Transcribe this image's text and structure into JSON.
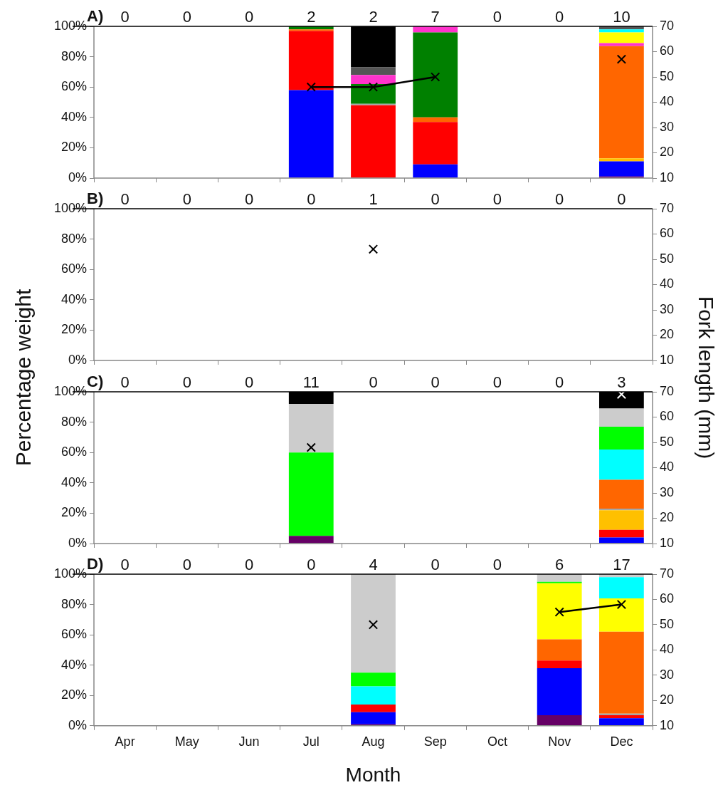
{
  "chart_data": [
    {
      "type": "bar",
      "title": "A)",
      "categories": [
        null,
        null,
        null,
        null,
        null,
        null,
        null,
        null,
        null
      ],
      "stacked": true,
      "grid": false,
      "ylim": [
        0,
        100
      ],
      "yticks": [
        {
          "value": 0,
          "label": "0%"
        },
        {
          "value": 20,
          "label": "20%"
        },
        {
          "value": 40,
          "label": "40%"
        },
        {
          "value": 60,
          "label": "60%"
        },
        {
          "value": 80,
          "label": "80%"
        },
        {
          "value": 100,
          "label": "100%"
        }
      ],
      "y2lim": [
        10,
        70
      ],
      "y2ticks": [
        10,
        20,
        30,
        40,
        50,
        60,
        70
      ],
      "series": [
        {
          "color": "#660066",
          "values": [
            null,
            null,
            null,
            null,
            null,
            null,
            null,
            null,
            1
          ]
        },
        {
          "color": "#0000ff",
          "values": [
            null,
            null,
            null,
            58,
            null,
            9,
            null,
            null,
            10
          ]
        },
        {
          "color": "#ff0000",
          "values": [
            null,
            null,
            null,
            39,
            48,
            28,
            null,
            null,
            null
          ]
        },
        {
          "color": "#ffc000",
          "values": [
            null,
            null,
            null,
            null,
            null,
            null,
            null,
            null,
            2
          ]
        },
        {
          "color": "#a6a6a6",
          "values": [
            null,
            null,
            null,
            null,
            1,
            null,
            null,
            null,
            null
          ]
        },
        {
          "color": "#ff6600",
          "values": [
            null,
            null,
            null,
            1,
            null,
            3,
            null,
            null,
            74
          ]
        },
        {
          "color": "#008000",
          "values": [
            null,
            null,
            null,
            2,
            13,
            56,
            null,
            null,
            null
          ]
        },
        {
          "color": "#ff33cc",
          "values": [
            null,
            null,
            null,
            null,
            6,
            4,
            null,
            null,
            2
          ]
        },
        {
          "color": "#ffff00",
          "values": [
            null,
            null,
            null,
            null,
            null,
            null,
            null,
            null,
            7
          ]
        },
        {
          "color": "#00ffff",
          "values": [
            null,
            null,
            null,
            null,
            null,
            null,
            null,
            null,
            2
          ]
        },
        {
          "color": "#555555",
          "values": [
            null,
            null,
            null,
            null,
            5,
            null,
            null,
            null,
            2
          ]
        },
        {
          "color": "#000000",
          "values": [
            null,
            null,
            null,
            null,
            27,
            null,
            null,
            null,
            null
          ]
        },
        {
          "type": "line",
          "axis": "y2",
          "marker": "cross",
          "color": "#000000",
          "values": [
            null,
            null,
            null,
            46,
            46,
            50,
            null,
            null,
            57
          ]
        }
      ],
      "annotations": [
        "0",
        "0",
        "0",
        "2",
        "2",
        "7",
        "0",
        "0",
        "10"
      ]
    },
    {
      "type": "bar",
      "title": "B)",
      "categories": [
        null,
        null,
        null,
        null,
        null,
        null,
        null,
        null,
        null
      ],
      "stacked": true,
      "grid": false,
      "ylabel": "Percentage weight",
      "y2label": "Fork length (mm)",
      "ylim": [
        0,
        100
      ],
      "yticks": [
        {
          "value": 0,
          "label": "0%"
        },
        {
          "value": 20,
          "label": "20%"
        },
        {
          "value": 40,
          "label": "40%"
        },
        {
          "value": 60,
          "label": "60%"
        },
        {
          "value": 80,
          "label": "80%"
        },
        {
          "value": 100,
          "label": "100%"
        }
      ],
      "y2lim": [
        10,
        70
      ],
      "y2ticks": [
        10,
        20,
        30,
        40,
        50,
        60,
        70
      ],
      "series": [
        {
          "type": "line",
          "axis": "y2",
          "marker": "cross",
          "color": "#000000",
          "values": [
            null,
            null,
            null,
            null,
            54,
            null,
            null,
            null,
            null
          ]
        }
      ],
      "annotations": [
        "0",
        "0",
        "0",
        "0",
        "1",
        "0",
        "0",
        "0",
        "0"
      ]
    },
    {
      "type": "bar",
      "title": "C)",
      "categories": [
        null,
        null,
        null,
        null,
        null,
        null,
        null,
        null,
        null
      ],
      "stacked": true,
      "grid": false,
      "ylim": [
        0,
        100
      ],
      "yticks": [
        {
          "value": 0,
          "label": "0%"
        },
        {
          "value": 20,
          "label": "20%"
        },
        {
          "value": 40,
          "label": "40%"
        },
        {
          "value": 60,
          "label": "60%"
        },
        {
          "value": 80,
          "label": "80%"
        },
        {
          "value": 100,
          "label": "100%"
        }
      ],
      "y2lim": [
        10,
        70
      ],
      "y2ticks": [
        10,
        20,
        30,
        40,
        50,
        60,
        70
      ],
      "series": [
        {
          "color": "#660066",
          "values": [
            null,
            null,
            null,
            5,
            null,
            null,
            null,
            null,
            null
          ]
        },
        {
          "color": "#0000ff",
          "values": [
            null,
            null,
            null,
            null,
            null,
            null,
            null,
            null,
            4
          ]
        },
        {
          "color": "#ff0000",
          "values": [
            null,
            null,
            null,
            null,
            null,
            null,
            null,
            null,
            5
          ]
        },
        {
          "color": "#ffc000",
          "values": [
            null,
            null,
            null,
            null,
            null,
            null,
            null,
            null,
            13
          ]
        },
        {
          "color": "#a6a6a6",
          "values": [
            null,
            null,
            null,
            null,
            null,
            null,
            null,
            null,
            1
          ]
        },
        {
          "color": "#ff6600",
          "values": [
            null,
            null,
            null,
            null,
            null,
            null,
            null,
            null,
            19
          ]
        },
        {
          "color": "#00ffff",
          "values": [
            null,
            null,
            null,
            null,
            null,
            null,
            null,
            null,
            20
          ]
        },
        {
          "color": "#00ff00",
          "values": [
            null,
            null,
            null,
            55,
            null,
            null,
            null,
            null,
            15
          ]
        },
        {
          "color": "#cccccc",
          "values": [
            null,
            null,
            null,
            32,
            null,
            null,
            null,
            null,
            12
          ]
        },
        {
          "color": "#000000",
          "values": [
            null,
            null,
            null,
            8,
            null,
            null,
            null,
            null,
            11
          ]
        },
        {
          "type": "line",
          "axis": "y2",
          "marker": "cross",
          "color": "#000000",
          "colors": [
            null,
            null,
            null,
            "#000000",
            null,
            null,
            null,
            null,
            "#ffffff"
          ],
          "values": [
            null,
            null,
            null,
            48,
            null,
            null,
            null,
            null,
            69
          ]
        }
      ],
      "annotations": [
        "0",
        "0",
        "0",
        "11",
        "0",
        "0",
        "0",
        "0",
        "3"
      ]
    },
    {
      "type": "bar",
      "title": "D)",
      "categories": [
        "Apr",
        "May",
        "Jun",
        "Jul",
        "Aug",
        "Sep",
        "Oct",
        "Nov",
        "Dec"
      ],
      "stacked": true,
      "grid": false,
      "xlabel": "Month",
      "ylim": [
        0,
        100
      ],
      "yticks": [
        {
          "value": 0,
          "label": "0%"
        },
        {
          "value": 20,
          "label": "20%"
        },
        {
          "value": 40,
          "label": "40%"
        },
        {
          "value": 60,
          "label": "60%"
        },
        {
          "value": 80,
          "label": "80%"
        },
        {
          "value": 100,
          "label": "100%"
        }
      ],
      "y2lim": [
        10,
        70
      ],
      "y2ticks": [
        10,
        20,
        30,
        40,
        50,
        60,
        70
      ],
      "series": [
        {
          "color": "#660066",
          "values": [
            null,
            null,
            null,
            null,
            1,
            null,
            null,
            7,
            null
          ]
        },
        {
          "color": "#0000ff",
          "values": [
            null,
            null,
            null,
            null,
            8,
            null,
            null,
            31,
            5
          ]
        },
        {
          "color": "#ff0000",
          "values": [
            null,
            null,
            null,
            null,
            5,
            null,
            null,
            5,
            2
          ]
        },
        {
          "color": "#a6a6a6",
          "values": [
            null,
            null,
            null,
            null,
            null,
            null,
            null,
            null,
            1
          ]
        },
        {
          "color": "#ff6600",
          "values": [
            null,
            null,
            null,
            null,
            null,
            null,
            null,
            14,
            54
          ]
        },
        {
          "color": "#ffff00",
          "values": [
            null,
            null,
            null,
            null,
            null,
            null,
            null,
            37,
            22
          ]
        },
        {
          "color": "#00ffff",
          "values": [
            null,
            null,
            null,
            null,
            12,
            null,
            null,
            null,
            14
          ]
        },
        {
          "color": "#00ff00",
          "values": [
            null,
            null,
            null,
            null,
            9,
            null,
            null,
            1,
            null
          ]
        },
        {
          "color": "#cccccc",
          "values": [
            null,
            null,
            null,
            null,
            65,
            null,
            null,
            5,
            2
          ]
        },
        {
          "type": "line",
          "axis": "y2",
          "marker": "cross",
          "color": "#000000",
          "values": [
            null,
            null,
            null,
            null,
            50,
            null,
            null,
            55,
            58
          ]
        }
      ],
      "annotations": [
        "0",
        "0",
        "0",
        "0",
        "4",
        "0",
        "0",
        "6",
        "17"
      ]
    }
  ]
}
